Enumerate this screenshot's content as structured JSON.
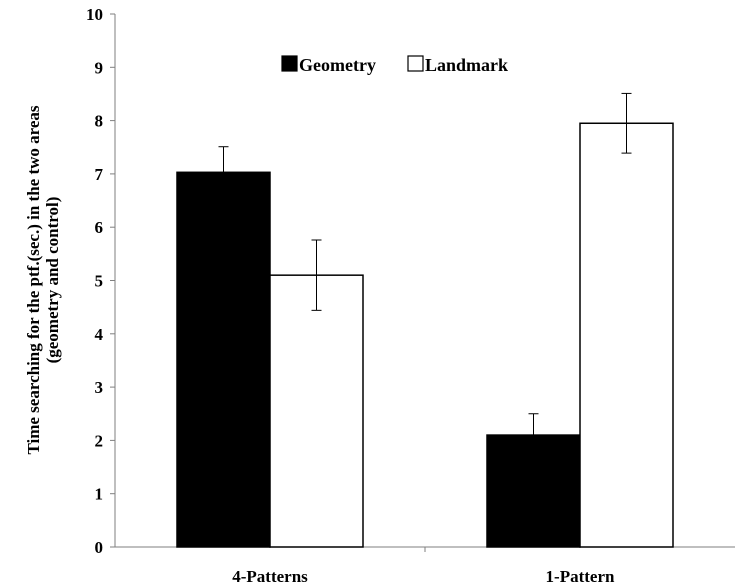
{
  "chart_data": {
    "type": "bar",
    "title": "",
    "xlabel": "",
    "ylabel": "Time searching for the ptf.(sec.) in the two areas",
    "ylabel_line2": "(geometry and control)",
    "ylim": [
      0,
      10
    ],
    "yticks": [
      0,
      1,
      2,
      3,
      4,
      5,
      6,
      7,
      8,
      9,
      10
    ],
    "categories": [
      "4-Patterns",
      "1-Pattern"
    ],
    "series": [
      {
        "name": "Geometry",
        "values": [
          7.03,
          2.1
        ],
        "errors": [
          0.48,
          0.4
        ],
        "fill": "#000000"
      },
      {
        "name": "Landmark",
        "values": [
          5.1,
          7.95
        ],
        "errors": [
          0.66,
          0.56
        ],
        "fill": "#ffffff"
      }
    ],
    "legend_position": "top-center",
    "grid": false
  }
}
